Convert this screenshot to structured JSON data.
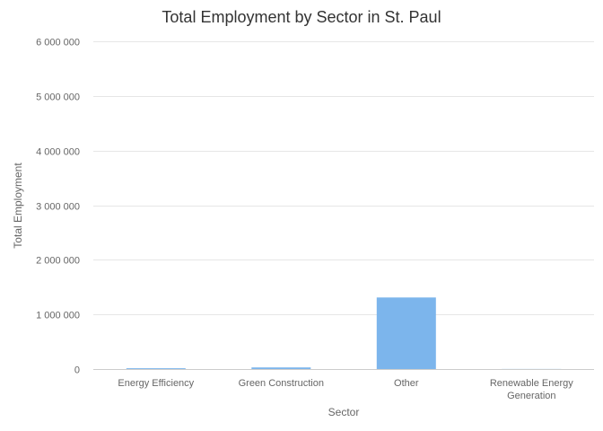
{
  "chart_data": {
    "type": "bar",
    "title": "Total Employment by Sector in St. Paul",
    "xlabel": "Sector",
    "ylabel": "Total Employment",
    "categories": [
      [
        "Energy Efficiency"
      ],
      [
        "Green Construction"
      ],
      [
        "Other"
      ],
      [
        "Renewable Energy",
        "Generation"
      ]
    ],
    "values": [
      15000,
      30000,
      1310000,
      1000
    ],
    "ylim": [
      0,
      6000000
    ],
    "yticks": [
      0,
      1000000,
      2000000,
      3000000,
      4000000,
      5000000,
      6000000
    ],
    "ytick_labels": [
      "0",
      "1 000 000",
      "2 000 000",
      "3 000 000",
      "4 000 000",
      "5 000 000",
      "6 000 000"
    ],
    "bar_color": "#7cb5ec",
    "grid": true,
    "legend": "none"
  }
}
